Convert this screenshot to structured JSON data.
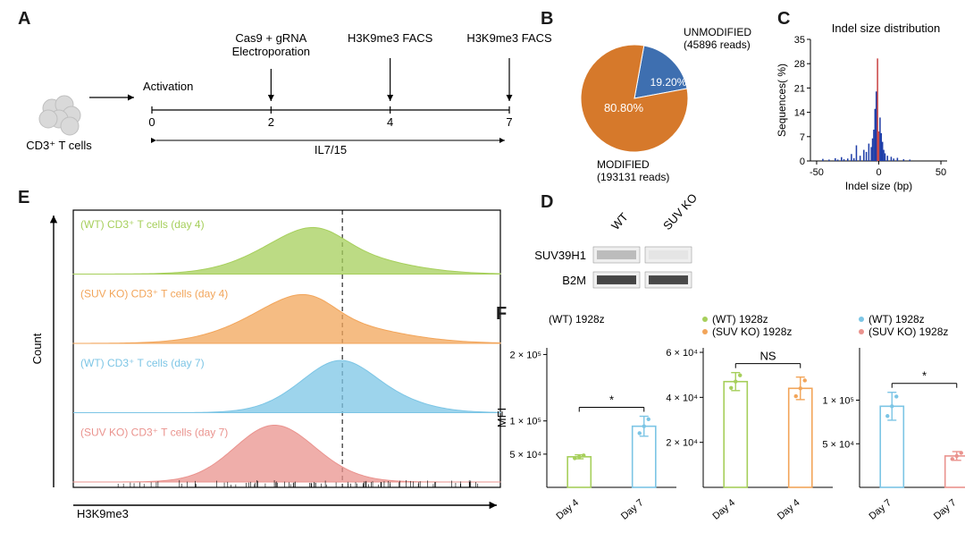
{
  "panelA": {
    "label": "A",
    "cell_label": "CD3⁺ T cells",
    "activation": "Activation",
    "timeline_ticks": [
      "0",
      "2",
      "4",
      "7"
    ],
    "midlabel": "IL7/15",
    "events": [
      {
        "label": "Cas9 + gRNA\nElectroporation",
        "atTick": 1
      },
      {
        "label": "H3K9me3 FACS",
        "atTick": 2
      },
      {
        "label": "H3K9me3 FACS",
        "atTick": 3
      }
    ],
    "style": {
      "font_event": 13,
      "font_tick": 13,
      "cell_color": "#d9d9d9",
      "cell_stroke": "#bfbfbf",
      "arrow_color": "#000000"
    }
  },
  "panelB": {
    "label": "B",
    "slices": [
      {
        "name": "UNMODIFIED",
        "pct": 19.2,
        "reads": 45896,
        "color": "#3e6fb0"
      },
      {
        "name": "MODIFIED",
        "pct": 80.8,
        "reads": 193131,
        "color": "#d6792b"
      }
    ],
    "pct_labels": [
      "19.20%",
      "80.80%"
    ],
    "captions": [
      "UNMODIFIED",
      "(45896 reads)",
      "MODIFIED",
      "(193131 reads)"
    ],
    "radius": 60,
    "label_fontsize": 12,
    "text_color": "#1a1a1a"
  },
  "panelC": {
    "label": "C",
    "title": "Indel size distribution",
    "xlim": [
      -55,
      55
    ],
    "ylim": [
      0,
      35
    ],
    "xticks": [
      -50,
      0,
      50
    ],
    "yticks": [
      0,
      7,
      14,
      21,
      28,
      35
    ],
    "xlabel": "Indel size (bp)",
    "ylabel": "Sequences( %)",
    "bar_color": "#1f3ea8",
    "central_color": "#c94545",
    "bars": [
      [
        -45,
        0.6
      ],
      [
        -40,
        0.4
      ],
      [
        -35,
        0.8
      ],
      [
        -33,
        0.4
      ],
      [
        -30,
        1.1
      ],
      [
        -28,
        0.5
      ],
      [
        -25,
        0.7
      ],
      [
        -22,
        2.0
      ],
      [
        -20,
        0.8
      ],
      [
        -18,
        4.5
      ],
      [
        -15,
        1.5
      ],
      [
        -12,
        3.2
      ],
      [
        -10,
        2.6
      ],
      [
        -8,
        5.0
      ],
      [
        -6,
        4.0
      ],
      [
        -5,
        6.5
      ],
      [
        -4,
        9.0
      ],
      [
        -3,
        15.0
      ],
      [
        -2,
        20.0
      ],
      [
        -1,
        29.5,
        "central"
      ],
      [
        0,
        8.5,
        "central"
      ],
      [
        1,
        12.5
      ],
      [
        2,
        8.0
      ],
      [
        3,
        5.5
      ],
      [
        4,
        3.2
      ],
      [
        5,
        2.2
      ],
      [
        7,
        1.5
      ],
      [
        10,
        1.2
      ],
      [
        12,
        0.7
      ],
      [
        15,
        0.9
      ],
      [
        20,
        0.5
      ],
      [
        25,
        0.4
      ]
    ],
    "title_fontsize": 13,
    "tick_fontsize": 11,
    "axis_label_fontsize": 12,
    "background": "#ffffff"
  },
  "panelD": {
    "label": "D",
    "col_labels": [
      "WT",
      "SUV KO"
    ],
    "row_labels": [
      "SUV39H1",
      "B2M"
    ],
    "bands": [
      [
        0.28,
        0.05
      ],
      [
        0.95,
        0.92
      ]
    ],
    "band_color_dark": "#3b3b3b",
    "band_bg": "#efefef",
    "fontsize": 13
  },
  "panelE": {
    "label": "E",
    "x_axis_label": "H3K9me3",
    "y_axis_label": "Count",
    "tracks": [
      {
        "label": "(WT) CD3⁺ T cells (day 4)",
        "color": "#a6cf5b",
        "peak_x": 0.62,
        "sigma": 0.14,
        "skew": -1.1,
        "height": 0.82
      },
      {
        "label": "(SUV KO) CD3⁺ T cells (day 4)",
        "color": "#f2a55a",
        "peak_x": 0.6,
        "sigma": 0.15,
        "skew": -1.3,
        "height": 0.86
      },
      {
        "label": "(WT) CD3⁺ T cells (day 7)",
        "color": "#7cc5e5",
        "peak_x": 0.67,
        "sigma": 0.11,
        "skew": -0.7,
        "height": 0.92
      },
      {
        "label": "(SUV KO) CD3⁺ T cells (day 7)",
        "color": "#ea938e",
        "peak_x": 0.5,
        "sigma": 0.1,
        "skew": -0.4,
        "height": 1.0
      }
    ],
    "ref_line_x": 0.63,
    "border_color": "#000000",
    "label_color": "#444444",
    "label_fontsize": 12
  },
  "panelF": {
    "label": "F",
    "groups": [
      {
        "legend": [
          {
            "name": "(WT) 1928z",
            "color": null
          }
        ],
        "bars": [
          {
            "label": "Day 4",
            "value": 46000.0,
            "color": "#a6cf5b",
            "err": 3000.0
          },
          {
            "label": "Day 7",
            "value": 92000.0,
            "color": "#7cc5e5",
            "err": 15000.0
          }
        ],
        "ylim": [
          0,
          210000.0
        ],
        "yticks": [
          50000.0,
          100000.0,
          200000.0
        ],
        "ytick_labels": [
          "5 × 10⁴",
          "1 × 10⁵",
          "2 × 10⁵"
        ],
        "sig": "*"
      },
      {
        "legend": [
          {
            "name": "(WT) 1928z",
            "color": "#a6cf5b"
          },
          {
            "name": "(SUV KO) 1928z",
            "color": "#f2a55a"
          }
        ],
        "bars": [
          {
            "label": "Day 4",
            "value": 47000.0,
            "color": "#a6cf5b",
            "err": 4000.0
          },
          {
            "label": "Day 4",
            "value": 44000.0,
            "color": "#f2a55a",
            "err": 5000.0
          }
        ],
        "ylim": [
          0,
          62000.0
        ],
        "yticks": [
          20000.0,
          40000.0,
          60000.0
        ],
        "ytick_labels": [
          "2 × 10⁴",
          "4 × 10⁴",
          "6 × 10⁴"
        ],
        "sig": "NS"
      },
      {
        "legend": [
          {
            "name": "(WT) 1928z",
            "color": "#7cc5e5"
          },
          {
            "name": "(SUV KO) 1928z",
            "color": "#ea938e"
          }
        ],
        "bars": [
          {
            "label": "Day 7",
            "value": 93000.0,
            "color": "#7cc5e5",
            "err": 16000.0
          },
          {
            "label": "Day 7",
            "value": 36000.0,
            "color": "#ea938e",
            "err": 5000.0
          }
        ],
        "ylim": [
          0,
          160000.0
        ],
        "yticks": [
          50000.0,
          100000.0
        ],
        "ytick_labels": [
          "5 × 10⁴",
          "1 × 10⁵"
        ],
        "sig": "*"
      }
    ],
    "ylabel": "MFI",
    "bar_width": 0.36,
    "marker_color": "#777777",
    "tick_fontsize": 11,
    "legend_fontsize": 12
  }
}
